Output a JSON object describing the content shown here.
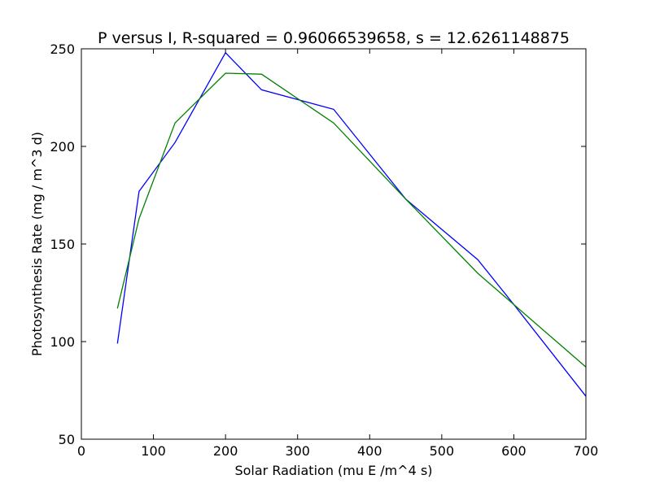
{
  "chart_data": {
    "type": "line",
    "title": "P versus I, R-squared = 0.96066539658, s = 12.6261148875",
    "xlabel": "Solar Radiation (mu E /m^4 s)",
    "ylabel": "Photosynthesis Rate (mg / m^3 d)",
    "xlim": [
      0,
      700
    ],
    "ylim": [
      50,
      250
    ],
    "xticks": [
      0,
      100,
      200,
      300,
      400,
      500,
      600,
      700
    ],
    "yticks": [
      50,
      100,
      150,
      200,
      250
    ],
    "grid": false,
    "series": [
      {
        "color": "#0000ff",
        "x": [
          50,
          80,
          130,
          200,
          250,
          300,
          350,
          450,
          550,
          600,
          700
        ],
        "y": [
          99,
          177,
          202,
          248,
          229,
          224,
          219,
          173,
          142,
          119,
          72
        ]
      },
      {
        "color": "#008000",
        "x": [
          50,
          80,
          130,
          200,
          250,
          350,
          450,
          550,
          600,
          700
        ],
        "y": [
          117,
          163,
          212,
          237.5,
          237,
          212,
          173,
          135,
          119,
          87
        ]
      }
    ]
  }
}
